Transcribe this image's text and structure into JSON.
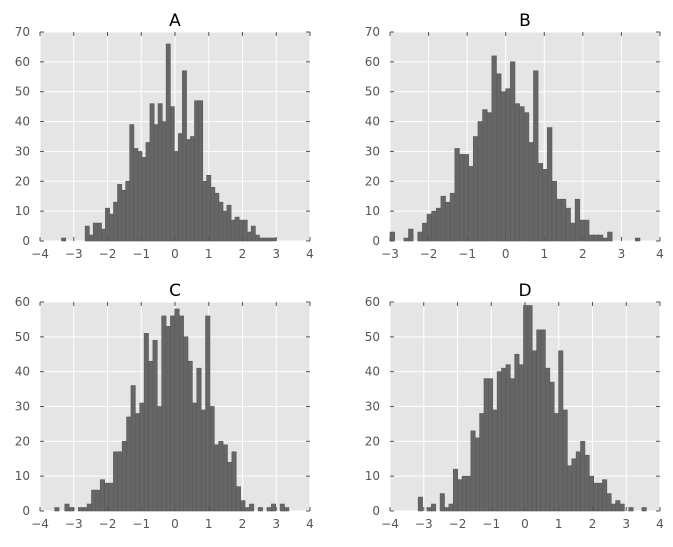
{
  "chart_data": [
    {
      "type": "bar",
      "title": "A",
      "xlim": [
        -4,
        4
      ],
      "ylim": [
        0,
        70
      ],
      "xticks": [
        "−4",
        "−3",
        "−2",
        "−1",
        "0",
        "1",
        "2",
        "3",
        "4"
      ],
      "yticks": [
        "0",
        "10",
        "20",
        "30",
        "40",
        "50",
        "60",
        "70"
      ],
      "grid": true,
      "bin_width": 0.125,
      "bins": [
        {
          "x": -3.3,
          "v": 1
        },
        {
          "x": -2.6,
          "v": 5
        },
        {
          "x": -2.48,
          "v": 2
        },
        {
          "x": -2.36,
          "v": 6
        },
        {
          "x": -2.24,
          "v": 6
        },
        {
          "x": -2.12,
          "v": 4
        },
        {
          "x": -2.0,
          "v": 11
        },
        {
          "x": -1.88,
          "v": 9
        },
        {
          "x": -1.76,
          "v": 13
        },
        {
          "x": -1.64,
          "v": 19
        },
        {
          "x": -1.52,
          "v": 17
        },
        {
          "x": -1.4,
          "v": 20
        },
        {
          "x": -1.28,
          "v": 39
        },
        {
          "x": -1.16,
          "v": 31
        },
        {
          "x": -1.04,
          "v": 30
        },
        {
          "x": -0.92,
          "v": 28
        },
        {
          "x": -0.8,
          "v": 33
        },
        {
          "x": -0.68,
          "v": 46
        },
        {
          "x": -0.56,
          "v": 39
        },
        {
          "x": -0.44,
          "v": 46
        },
        {
          "x": -0.32,
          "v": 40
        },
        {
          "x": -0.2,
          "v": 66
        },
        {
          "x": -0.08,
          "v": 45
        },
        {
          "x": 0.04,
          "v": 30
        },
        {
          "x": 0.16,
          "v": 36
        },
        {
          "x": 0.28,
          "v": 57
        },
        {
          "x": 0.4,
          "v": 34
        },
        {
          "x": 0.52,
          "v": 35
        },
        {
          "x": 0.64,
          "v": 47
        },
        {
          "x": 0.76,
          "v": 47
        },
        {
          "x": 0.88,
          "v": 20
        },
        {
          "x": 1.0,
          "v": 22
        },
        {
          "x": 1.12,
          "v": 18
        },
        {
          "x": 1.24,
          "v": 16
        },
        {
          "x": 1.36,
          "v": 13
        },
        {
          "x": 1.48,
          "v": 10
        },
        {
          "x": 1.6,
          "v": 12
        },
        {
          "x": 1.72,
          "v": 7
        },
        {
          "x": 1.84,
          "v": 8
        },
        {
          "x": 1.96,
          "v": 7
        },
        {
          "x": 2.08,
          "v": 7
        },
        {
          "x": 2.2,
          "v": 3
        },
        {
          "x": 2.32,
          "v": 5
        },
        {
          "x": 2.44,
          "v": 2
        },
        {
          "x": 2.56,
          "v": 1
        },
        {
          "x": 2.68,
          "v": 1
        },
        {
          "x": 2.8,
          "v": 1
        },
        {
          "x": 2.92,
          "v": 1
        }
      ]
    },
    {
      "type": "bar",
      "title": "B",
      "xlim": [
        -3,
        4
      ],
      "ylim": [
        0,
        70
      ],
      "xticks": [
        "−3",
        "−2",
        "−1",
        "0",
        "1",
        "2",
        "3",
        "4"
      ],
      "yticks": [
        "0",
        "10",
        "20",
        "30",
        "40",
        "50",
        "60",
        "70"
      ],
      "grid": true,
      "bin_width": 0.12,
      "bins": [
        {
          "x": -2.94,
          "v": 3
        },
        {
          "x": -2.58,
          "v": 1
        },
        {
          "x": -2.46,
          "v": 4
        },
        {
          "x": -2.22,
          "v": 3
        },
        {
          "x": -2.1,
          "v": 6
        },
        {
          "x": -1.98,
          "v": 9
        },
        {
          "x": -1.86,
          "v": 10
        },
        {
          "x": -1.74,
          "v": 11
        },
        {
          "x": -1.62,
          "v": 15
        },
        {
          "x": -1.5,
          "v": 13
        },
        {
          "x": -1.38,
          "v": 16
        },
        {
          "x": -1.26,
          "v": 31
        },
        {
          "x": -1.14,
          "v": 29
        },
        {
          "x": -1.02,
          "v": 29
        },
        {
          "x": -0.9,
          "v": 25
        },
        {
          "x": -0.78,
          "v": 35
        },
        {
          "x": -0.66,
          "v": 40
        },
        {
          "x": -0.54,
          "v": 44
        },
        {
          "x": -0.42,
          "v": 43
        },
        {
          "x": -0.3,
          "v": 62
        },
        {
          "x": -0.18,
          "v": 56
        },
        {
          "x": -0.06,
          "v": 50
        },
        {
          "x": 0.06,
          "v": 51
        },
        {
          "x": 0.18,
          "v": 60
        },
        {
          "x": 0.3,
          "v": 46
        },
        {
          "x": 0.42,
          "v": 45
        },
        {
          "x": 0.54,
          "v": 43
        },
        {
          "x": 0.66,
          "v": 33
        },
        {
          "x": 0.78,
          "v": 57
        },
        {
          "x": 0.9,
          "v": 26
        },
        {
          "x": 1.02,
          "v": 24
        },
        {
          "x": 1.14,
          "v": 38
        },
        {
          "x": 1.26,
          "v": 20
        },
        {
          "x": 1.38,
          "v": 14
        },
        {
          "x": 1.5,
          "v": 14
        },
        {
          "x": 1.62,
          "v": 11
        },
        {
          "x": 1.74,
          "v": 6
        },
        {
          "x": 1.86,
          "v": 14
        },
        {
          "x": 1.98,
          "v": 7
        },
        {
          "x": 2.1,
          "v": 7
        },
        {
          "x": 2.22,
          "v": 2
        },
        {
          "x": 2.34,
          "v": 2
        },
        {
          "x": 2.46,
          "v": 2
        },
        {
          "x": 2.58,
          "v": 1
        },
        {
          "x": 2.7,
          "v": 3
        },
        {
          "x": 3.42,
          "v": 1
        }
      ]
    },
    {
      "type": "bar",
      "title": "C",
      "xlim": [
        -4,
        4
      ],
      "ylim": [
        0,
        60
      ],
      "xticks": [
        "−4",
        "−3",
        "−2",
        "−1",
        "0",
        "1",
        "2",
        "3",
        "4"
      ],
      "yticks": [
        "0",
        "10",
        "20",
        "30",
        "40",
        "50",
        "60"
      ],
      "grid": true,
      "bin_width": 0.13,
      "bins": [
        {
          "x": -3.5,
          "v": 1
        },
        {
          "x": -3.2,
          "v": 2
        },
        {
          "x": -3.06,
          "v": 1
        },
        {
          "x": -2.8,
          "v": 1
        },
        {
          "x": -2.67,
          "v": 1
        },
        {
          "x": -2.54,
          "v": 2
        },
        {
          "x": -2.41,
          "v": 6
        },
        {
          "x": -2.28,
          "v": 6
        },
        {
          "x": -2.15,
          "v": 9
        },
        {
          "x": -2.02,
          "v": 8
        },
        {
          "x": -1.89,
          "v": 8
        },
        {
          "x": -1.76,
          "v": 17
        },
        {
          "x": -1.63,
          "v": 17
        },
        {
          "x": -1.5,
          "v": 20
        },
        {
          "x": -1.37,
          "v": 27
        },
        {
          "x": -1.24,
          "v": 36
        },
        {
          "x": -1.11,
          "v": 28
        },
        {
          "x": -0.98,
          "v": 31
        },
        {
          "x": -0.85,
          "v": 51
        },
        {
          "x": -0.72,
          "v": 43
        },
        {
          "x": -0.59,
          "v": 49
        },
        {
          "x": -0.46,
          "v": 30
        },
        {
          "x": -0.33,
          "v": 56
        },
        {
          "x": -0.2,
          "v": 53
        },
        {
          "x": -0.07,
          "v": 56
        },
        {
          "x": 0.06,
          "v": 58
        },
        {
          "x": 0.19,
          "v": 56
        },
        {
          "x": 0.32,
          "v": 50
        },
        {
          "x": 0.45,
          "v": 43
        },
        {
          "x": 0.58,
          "v": 31
        },
        {
          "x": 0.71,
          "v": 41
        },
        {
          "x": 0.84,
          "v": 29
        },
        {
          "x": 0.97,
          "v": 56
        },
        {
          "x": 1.1,
          "v": 30
        },
        {
          "x": 1.23,
          "v": 19
        },
        {
          "x": 1.36,
          "v": 20
        },
        {
          "x": 1.49,
          "v": 19
        },
        {
          "x": 1.62,
          "v": 14
        },
        {
          "x": 1.75,
          "v": 17
        },
        {
          "x": 1.88,
          "v": 7
        },
        {
          "x": 2.01,
          "v": 3
        },
        {
          "x": 2.14,
          "v": 1
        },
        {
          "x": 2.27,
          "v": 2
        },
        {
          "x": 2.53,
          "v": 1
        },
        {
          "x": 2.79,
          "v": 1
        },
        {
          "x": 2.92,
          "v": 2
        },
        {
          "x": 3.18,
          "v": 2
        },
        {
          "x": 3.31,
          "v": 1
        }
      ]
    },
    {
      "type": "bar",
      "title": "D",
      "xlim": [
        -4,
        4
      ],
      "ylim": [
        0,
        60
      ],
      "xticks": [
        "−4",
        "−3",
        "−2",
        "−1",
        "0",
        "1",
        "2",
        "3",
        "4"
      ],
      "yticks": [
        "0",
        "10",
        "20",
        "30",
        "40",
        "50",
        "60"
      ],
      "grid": true,
      "bin_width": 0.13,
      "bins": [
        {
          "x": -3.1,
          "v": 4
        },
        {
          "x": -2.84,
          "v": 1
        },
        {
          "x": -2.71,
          "v": 2
        },
        {
          "x": -2.45,
          "v": 5
        },
        {
          "x": -2.32,
          "v": 1
        },
        {
          "x": -2.19,
          "v": 2
        },
        {
          "x": -2.06,
          "v": 12
        },
        {
          "x": -1.93,
          "v": 9
        },
        {
          "x": -1.8,
          "v": 10
        },
        {
          "x": -1.67,
          "v": 10
        },
        {
          "x": -1.54,
          "v": 23
        },
        {
          "x": -1.41,
          "v": 21
        },
        {
          "x": -1.28,
          "v": 28
        },
        {
          "x": -1.15,
          "v": 38
        },
        {
          "x": -1.02,
          "v": 38
        },
        {
          "x": -0.89,
          "v": 29
        },
        {
          "x": -0.76,
          "v": 40
        },
        {
          "x": -0.63,
          "v": 41
        },
        {
          "x": -0.5,
          "v": 42
        },
        {
          "x": -0.37,
          "v": 38
        },
        {
          "x": -0.24,
          "v": 45
        },
        {
          "x": -0.11,
          "v": 42
        },
        {
          "x": 0.02,
          "v": 59
        },
        {
          "x": 0.15,
          "v": 59
        },
        {
          "x": 0.28,
          "v": 46
        },
        {
          "x": 0.41,
          "v": 52
        },
        {
          "x": 0.54,
          "v": 52
        },
        {
          "x": 0.67,
          "v": 41
        },
        {
          "x": 0.8,
          "v": 37
        },
        {
          "x": 0.93,
          "v": 28
        },
        {
          "x": 1.06,
          "v": 46
        },
        {
          "x": 1.19,
          "v": 29
        },
        {
          "x": 1.32,
          "v": 13
        },
        {
          "x": 1.45,
          "v": 15
        },
        {
          "x": 1.58,
          "v": 17
        },
        {
          "x": 1.71,
          "v": 20
        },
        {
          "x": 1.84,
          "v": 16
        },
        {
          "x": 1.97,
          "v": 10
        },
        {
          "x": 2.1,
          "v": 8
        },
        {
          "x": 2.23,
          "v": 8
        },
        {
          "x": 2.36,
          "v": 9
        },
        {
          "x": 2.49,
          "v": 5
        },
        {
          "x": 2.62,
          "v": 2
        },
        {
          "x": 2.75,
          "v": 3
        },
        {
          "x": 2.88,
          "v": 2
        },
        {
          "x": 3.14,
          "v": 1
        },
        {
          "x": 3.53,
          "v": 1
        }
      ]
    }
  ]
}
